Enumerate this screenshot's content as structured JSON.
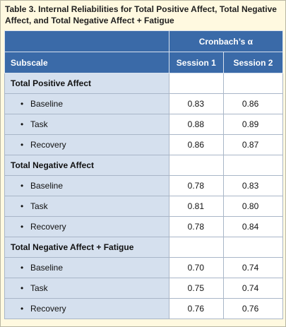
{
  "title": "Table 3. Internal Reliabilities for Total Positive Affect, Total Negative Affect, and Total Negative Affect + Fatigue",
  "header": {
    "group": "Cronbach’s α",
    "subscale": "Subscale",
    "session1": "Session 1",
    "session2": "Session 2"
  },
  "rows": [
    {
      "type": "section",
      "label": "Total Positive Affect",
      "s1": "",
      "s2": ""
    },
    {
      "type": "item",
      "label": "Baseline",
      "s1": "0.83",
      "s2": "0.86"
    },
    {
      "type": "item",
      "label": "Task",
      "s1": "0.88",
      "s2": "0.89"
    },
    {
      "type": "item",
      "label": "Recovery",
      "s1": "0.86",
      "s2": "0.87"
    },
    {
      "type": "section",
      "label": "Total Negative Affect",
      "s1": "",
      "s2": ""
    },
    {
      "type": "item",
      "label": "Baseline",
      "s1": "0.78",
      "s2": "0.83"
    },
    {
      "type": "item",
      "label": "Task",
      "s1": "0.81",
      "s2": "0.80"
    },
    {
      "type": "item",
      "label": "Recovery",
      "s1": "0.78",
      "s2": "0.84"
    },
    {
      "type": "section",
      "label": "Total Negative Affect + Fatigue",
      "s1": "",
      "s2": ""
    },
    {
      "type": "item",
      "label": "Baseline",
      "s1": "0.70",
      "s2": "0.74"
    },
    {
      "type": "item",
      "label": "Task",
      "s1": "0.75",
      "s2": "0.74"
    },
    {
      "type": "item",
      "label": "Recovery",
      "s1": "0.76",
      "s2": "0.76"
    }
  ]
}
